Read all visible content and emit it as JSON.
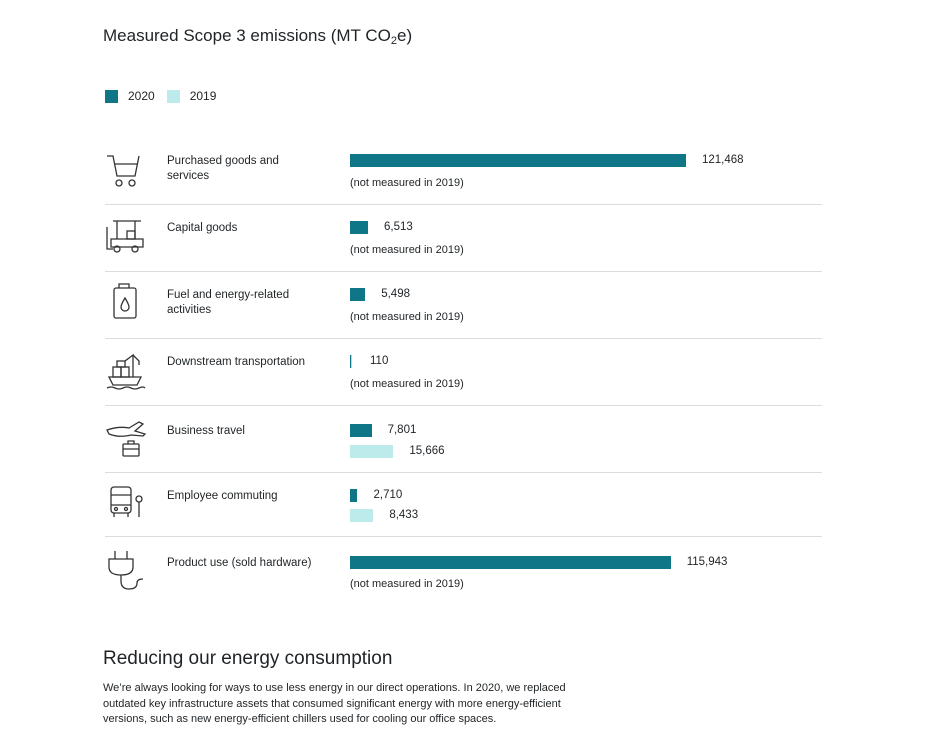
{
  "chart_data": {
    "type": "bar",
    "orientation": "horizontal",
    "title_main": "Measured Scope 3 emissions (MT CO",
    "title_sub": "2",
    "title_end": "e)",
    "legend": [
      {
        "name": "2020",
        "color": "#0e7686"
      },
      {
        "name": "2019",
        "color": "#bdebec"
      }
    ],
    "categories": [
      "Purchased goods and services",
      "Capital goods",
      "Fuel and energy-related activities",
      "Downstream transportation",
      "Business travel",
      "Employee commuting",
      "Product use (sold hardware)"
    ],
    "series": [
      {
        "name": "2020",
        "values": [
          121468,
          6513,
          5498,
          110,
          7801,
          2710,
          115943
        ]
      },
      {
        "name": "2019",
        "values": [
          null,
          null,
          null,
          null,
          15666,
          8433,
          null
        ]
      }
    ],
    "value_labels_2020": [
      "121,468",
      "6,513",
      "5,498",
      "110",
      "7,801",
      "2,710",
      "115,943"
    ],
    "value_labels_2019": [
      "",
      "",
      "",
      "",
      "15,666",
      "8,433",
      ""
    ],
    "not_measured_note": "(not measured in 2019)",
    "icons": [
      "cart-icon",
      "forklift-icon",
      "fuel-can-icon",
      "cargo-ship-icon",
      "plane-briefcase-icon",
      "bus-icon",
      "plug-icon"
    ]
  },
  "section": {
    "heading": "Reducing our energy consumption",
    "body": "We’re always looking for ways to use less energy in our direct operations. In 2020, we replaced outdated key infrastructure assets that consumed significant energy with more energy-efficient versions, such as new energy-efficient chillers used for cooling our office spaces."
  }
}
